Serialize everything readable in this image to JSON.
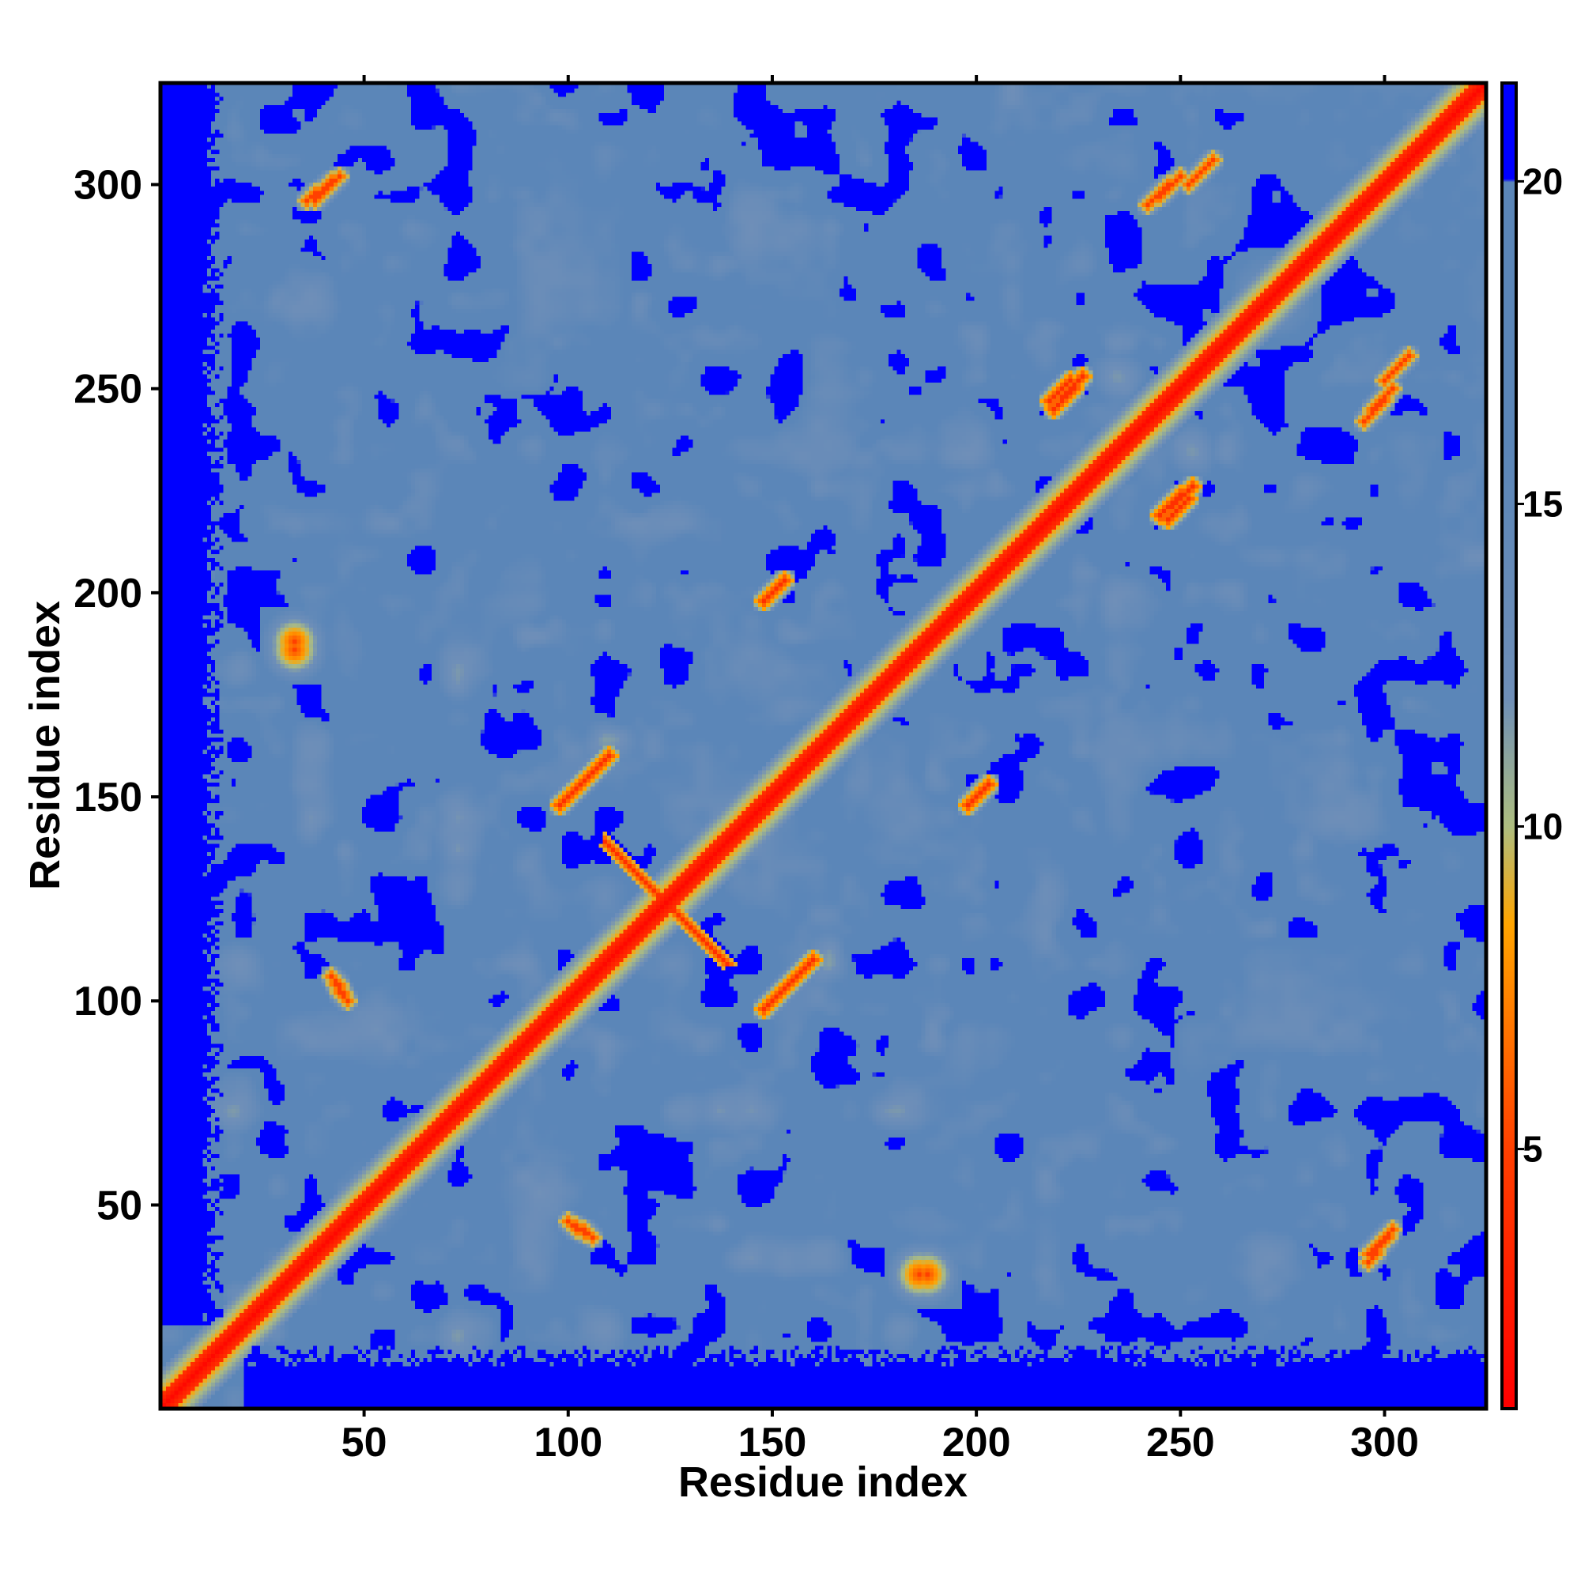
{
  "chart_data": {
    "type": "heatmap",
    "title": "",
    "xlabel": "Residue index",
    "ylabel": "Residue index",
    "n_residues": 324,
    "xlim": [
      1,
      324
    ],
    "ylim": [
      1,
      324
    ],
    "x_ticks": [
      50,
      100,
      150,
      200,
      250,
      300
    ],
    "y_ticks": [
      50,
      100,
      150,
      200,
      250,
      300
    ],
    "x_tick_labels": [
      "50",
      "100",
      "150",
      "200",
      "250",
      "300"
    ],
    "y_tick_labels": [
      "50",
      "100",
      "150",
      "200",
      "250",
      "300"
    ],
    "colorbar": {
      "range": [
        1,
        21.5
      ],
      "ticks": [
        5,
        10,
        15,
        20
      ],
      "tick_labels": [
        "5",
        "10",
        "15",
        "20"
      ],
      "placement": "right",
      "stops": [
        {
          "value": 1,
          "color": "#ff0000"
        },
        {
          "value": 5,
          "color": "#ff4000"
        },
        {
          "value": 8.5,
          "color": "#ffa500"
        },
        {
          "value": 10,
          "color": "#aebe80"
        },
        {
          "value": 12,
          "color": "#6f8fb8"
        },
        {
          "value": 16,
          "color": "#5b86b8"
        },
        {
          "value": 20,
          "color": "#5b86b8"
        },
        {
          "value": 20.01,
          "color": "#0000ff"
        },
        {
          "value": 21.5,
          "color": "#0000ff"
        }
      ]
    },
    "diagonal": {
      "width_residues": 3.5,
      "value": 2
    },
    "features": [
      {
        "kind": "antidiag",
        "i": [
          110,
          140
        ],
        "j": [
          112,
          138
        ],
        "note": "cross at 123"
      },
      {
        "kind": "line",
        "from": [
          150,
          100
        ],
        "to": [
          160,
          110
        ],
        "value": 4
      },
      {
        "kind": "line",
        "from": [
          198,
          148
        ],
        "to": [
          203,
          153
        ],
        "value": 4
      },
      {
        "kind": "line",
        "from": [
          247,
          218
        ],
        "to": [
          252,
          223
        ],
        "value": 4
      },
      {
        "kind": "line",
        "from": [
          219,
          245
        ],
        "to": [
          226,
          253
        ],
        "value": 4
      },
      {
        "kind": "line",
        "from": [
          252,
          300
        ],
        "to": [
          258,
          306
        ],
        "value": 5
      },
      {
        "kind": "line",
        "from": [
          295,
          242
        ],
        "to": [
          302,
          250
        ],
        "value": 5
      },
      {
        "kind": "line",
        "from": [
          36,
          296
        ],
        "to": [
          44,
          302
        ],
        "value": 5
      },
      {
        "kind": "line",
        "from": [
          296,
          38
        ],
        "to": [
          302,
          44
        ],
        "value": 5
      },
      {
        "kind": "line",
        "from": [
          98,
          148
        ],
        "to": [
          106,
          156
        ],
        "value": 4
      },
      {
        "kind": "line",
        "from": [
          46,
          100
        ],
        "to": [
          42,
          106
        ],
        "value": 5
      },
      {
        "kind": "blob",
        "center": [
          33,
          188
        ],
        "radius": 4,
        "value": 5
      },
      {
        "kind": "blob",
        "center": [
          186,
          33
        ],
        "radius": 4,
        "value": 5
      }
    ],
    "blue_background_edges": [
      {
        "edge": "left",
        "residues": [
          1,
          15
        ]
      },
      {
        "edge": "bottom",
        "residues": [
          1,
          15
        ]
      }
    ],
    "grid": false,
    "legend": "colorbar-right"
  }
}
